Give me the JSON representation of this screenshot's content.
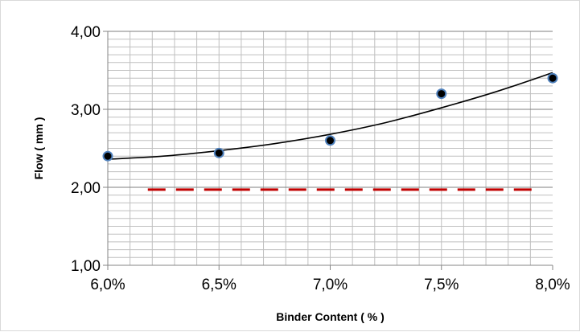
{
  "chart_data": {
    "type": "scatter",
    "xlabel": "Binder Content ( % )",
    "ylabel": "Flow ( mm )",
    "xlim": [
      6.0,
      8.0
    ],
    "ylim": [
      1.0,
      4.0
    ],
    "x_ticks": [
      6.0,
      6.5,
      7.0,
      7.5,
      8.0
    ],
    "x_tick_labels": [
      "6,0%",
      "6,5%",
      "7,0%",
      "7,5%",
      "8,0%"
    ],
    "y_ticks": [
      1.0,
      2.0,
      3.0,
      4.0
    ],
    "y_tick_labels": [
      "1,00",
      "2,00",
      "3,00",
      "4,00"
    ],
    "grid": true,
    "series": [
      {
        "type": "scatter",
        "x": [
          6.0,
          6.5,
          7.0,
          7.5,
          8.0
        ],
        "y": [
          2.4,
          2.44,
          2.6,
          3.2,
          3.4
        ],
        "marker_color": "#000000",
        "marker_edge": "#4f81bd"
      },
      {
        "type": "trendline",
        "style": "polynomial",
        "x": [
          6.0,
          6.25,
          6.5,
          6.75,
          7.0,
          7.25,
          7.5,
          7.75,
          8.0
        ],
        "y": [
          2.36,
          2.4,
          2.47,
          2.56,
          2.68,
          2.83,
          3.02,
          3.23,
          3.47
        ],
        "color": "#000000"
      },
      {
        "type": "line",
        "style": "dashed",
        "x": [
          6.18,
          7.93
        ],
        "y": [
          1.97,
          1.97
        ],
        "color": "#c00000"
      }
    ]
  }
}
